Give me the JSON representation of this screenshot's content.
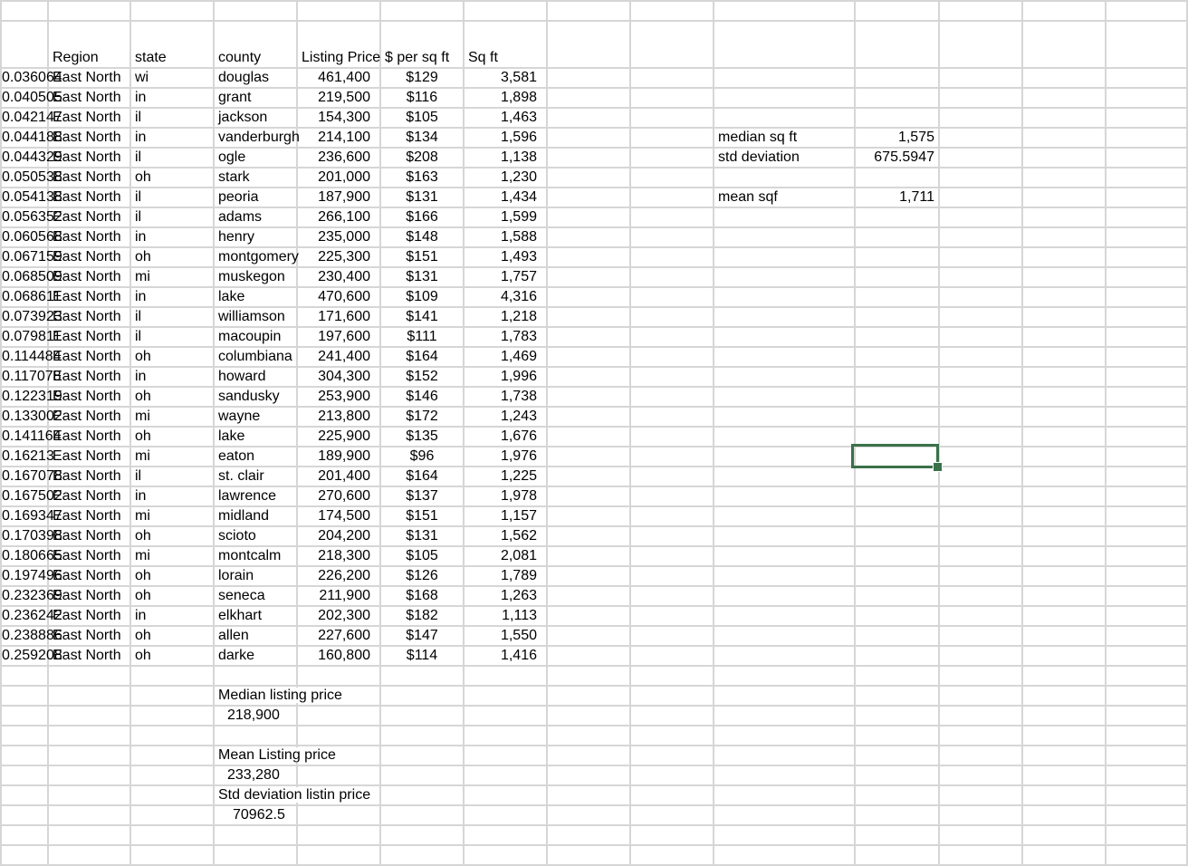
{
  "sheet": {
    "headers": [
      "",
      "Region",
      "state",
      "county",
      "Listing Price",
      "$ per sq ft",
      "Sq ft"
    ],
    "rows": [
      [
        "0.036064",
        "East North",
        "wi",
        "douglas",
        "461,400",
        "$129",
        "3,581"
      ],
      [
        "0.040505",
        "East North",
        "in",
        "grant",
        "219,500",
        "$116",
        "1,898"
      ],
      [
        "0.042147",
        "East North",
        "il",
        "jackson",
        "154,300",
        "$105",
        "1,463"
      ],
      [
        "0.044188",
        "East North",
        "in",
        "vanderburgh",
        "214,100",
        "$134",
        "1,596"
      ],
      [
        "0.044329",
        "East North",
        "il",
        "ogle",
        "236,600",
        "$208",
        "1,138"
      ],
      [
        "0.050538",
        "East North",
        "oh",
        "stark",
        "201,000",
        "$163",
        "1,230"
      ],
      [
        "0.054138",
        "East North",
        "il",
        "peoria",
        "187,900",
        "$131",
        "1,434"
      ],
      [
        "0.056352",
        "East North",
        "il",
        "adams",
        "266,100",
        "$166",
        "1,599"
      ],
      [
        "0.060568",
        "East North",
        "in",
        "henry",
        "235,000",
        "$148",
        "1,588"
      ],
      [
        "0.067159",
        "East North",
        "oh",
        "montgomery",
        "225,300",
        "$151",
        "1,493"
      ],
      [
        "0.068509",
        "East North",
        "mi",
        "muskegon",
        "230,400",
        "$131",
        "1,757"
      ],
      [
        "0.068611",
        "East North",
        "in",
        "lake",
        "470,600",
        "$109",
        "4,316"
      ],
      [
        "0.073923",
        "East North",
        "il",
        "williamson",
        "171,600",
        "$141",
        "1,218"
      ],
      [
        "0.079811",
        "East North",
        "il",
        "macoupin",
        "197,600",
        "$111",
        "1,783"
      ],
      [
        "0.114484",
        "East North",
        "oh",
        "columbiana",
        "241,400",
        "$164",
        "1,469"
      ],
      [
        "0.117078",
        "East North",
        "in",
        "howard",
        "304,300",
        "$152",
        "1,996"
      ],
      [
        "0.122319",
        "East North",
        "oh",
        "sandusky",
        "253,900",
        "$146",
        "1,738"
      ],
      [
        "0.133002",
        "East North",
        "mi",
        "wayne",
        "213,800",
        "$172",
        "1,243"
      ],
      [
        "0.141164",
        "East North",
        "oh",
        "lake",
        "225,900",
        "$135",
        "1,676"
      ],
      [
        "0.16213",
        "East North",
        "mi",
        "eaton",
        "189,900",
        "$96",
        "1,976"
      ],
      [
        "0.167078",
        "East North",
        "il",
        "st. clair",
        "201,400",
        "$164",
        "1,225"
      ],
      [
        "0.167502",
        "East North",
        "in",
        "lawrence",
        "270,600",
        "$137",
        "1,978"
      ],
      [
        "0.169347",
        "East North",
        "mi",
        "midland",
        "174,500",
        "$151",
        "1,157"
      ],
      [
        "0.170398",
        "East North",
        "oh",
        "scioto",
        "204,200",
        "$131",
        "1,562"
      ],
      [
        "0.180665",
        "East North",
        "mi",
        "montcalm",
        "218,300",
        "$105",
        "2,081"
      ],
      [
        "0.197496",
        "East North",
        "oh",
        "lorain",
        "226,200",
        "$126",
        "1,789"
      ],
      [
        "0.232369",
        "East North",
        "oh",
        "seneca",
        "211,900",
        "$168",
        "1,263"
      ],
      [
        "0.236242",
        "East North",
        "in",
        "elkhart",
        "202,300",
        "$182",
        "1,113"
      ],
      [
        "0.238886",
        "East North",
        "oh",
        "allen",
        "227,600",
        "$147",
        "1,550"
      ],
      [
        "0.259208",
        "East North",
        "oh",
        "darke",
        "160,800",
        "$114",
        "1,416"
      ]
    ]
  },
  "sqft_stats": [
    {
      "row": 3,
      "label": "median sq ft",
      "value": "1,575"
    },
    {
      "row": 4,
      "label": "std deviation",
      "value": "675.5947"
    },
    {
      "row": 6,
      "label": "mean sqf",
      "value": "1,711"
    }
  ],
  "price_stats": {
    "median_label": "Median listing price",
    "median_value": "218,900",
    "mean_label": "Mean Listing price",
    "mean_value": "233,280",
    "std_label": "Std deviation listin price",
    "std_value": "70962.5"
  },
  "selection": {
    "cell": "J20",
    "color": "#3a7148"
  },
  "colors": {
    "gridline": "#d6d6d6",
    "selection": "#3a7148"
  }
}
